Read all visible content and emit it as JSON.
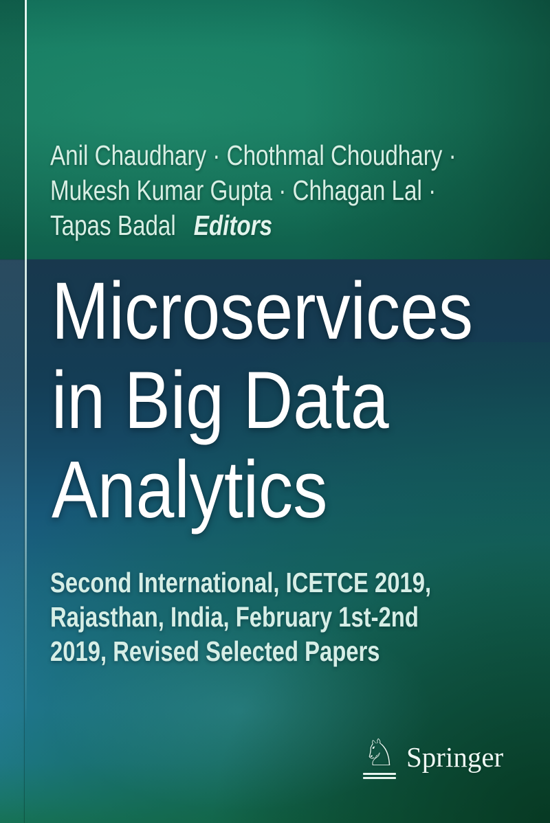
{
  "authors": {
    "line1": "Anil Chaudhary · Chothmal Choudhary ·",
    "line2": "Mukesh Kumar Gupta · Chhagan Lal ·",
    "line3": "Tapas Badal",
    "editors_label": "Editors"
  },
  "title": {
    "line1": "Microservices",
    "line2": "in Big Data",
    "line3": "Analytics"
  },
  "subtitle": {
    "line1": "Second International, ICETCE 2019,",
    "line2": "Rajasthan, India, February 1st-2nd",
    "line3": "2019, Revised Selected Papers"
  },
  "publisher": {
    "name": "Springer",
    "logo_icon": "♘"
  },
  "colors": {
    "top_green": "#177a60",
    "panel_navy": "#18384d",
    "bottom_blue": "#227a9b",
    "bottom_green": "#0e5a3c",
    "author_text_mint": "#d8efe4",
    "title_white": "#ffffff",
    "spine_highlight": "#e4f7f0"
  }
}
